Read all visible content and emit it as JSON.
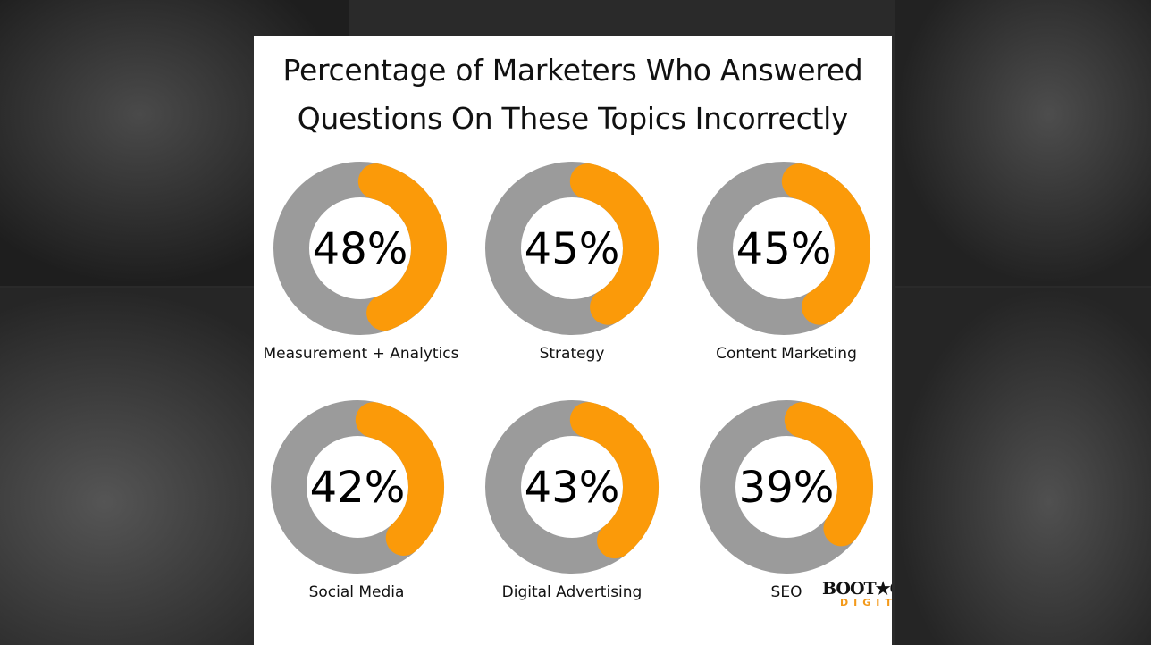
{
  "chart_data": {
    "type": "donut",
    "title": "Percentage of Marketers Who Answered Questions On These Topics Incorrectly",
    "title_lines": [
      "Percentage of Marketers Who Answered",
      "Questions On These Topics Incorrectly"
    ],
    "categories": [
      "Measurement + Analytics",
      "Strategy",
      "Content Marketing",
      "Social Media",
      "Digital Advertising",
      "SEO"
    ],
    "values": [
      48,
      45,
      45,
      42,
      43,
      39
    ],
    "value_labels": [
      "48%",
      "45%",
      "45%",
      "42%",
      "43%",
      "39%"
    ],
    "colors": {
      "value": "#fb9a09",
      "remainder": "#9b9b9b"
    }
  },
  "logo": {
    "top": "BOOT★CA",
    "bottom": "DIGITA"
  }
}
